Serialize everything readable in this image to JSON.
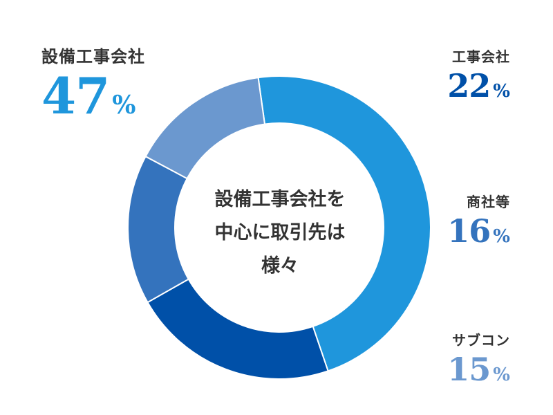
{
  "chart_data": {
    "type": "pie",
    "donut": true,
    "title": "",
    "center_label": [
      "設備工事会社を",
      "中心に取引先は",
      "様々"
    ],
    "slices": [
      {
        "label": "設備工事会社",
        "value": 47,
        "unit": "%",
        "color": "#1f96dc"
      },
      {
        "label": "工事会社",
        "value": 22,
        "unit": "%",
        "color": "#0050a8"
      },
      {
        "label": "商社等",
        "value": 16,
        "unit": "%",
        "color": "#3473bd"
      },
      {
        "label": "サブコン",
        "value": 15,
        "unit": "%",
        "color": "#6b98cf"
      }
    ],
    "start_angle_deg": -8,
    "direction": "clockwise",
    "legend": "none"
  }
}
